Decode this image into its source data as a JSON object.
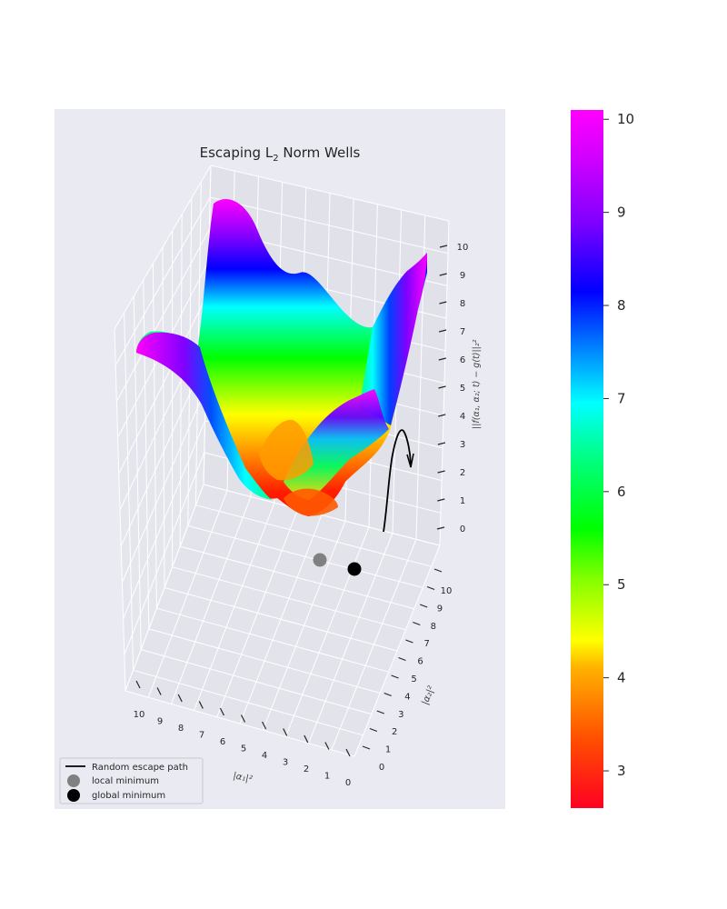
{
  "chart_data": {
    "type": "surface3d",
    "title_main": "Escaping L",
    "title_sub": "2",
    "title_rest": " Norm Wells",
    "xlabel": "|α₁|²",
    "ylabel": "|α₂|²",
    "zlabel": "||f(α₁, α₂; t) − g(t)||₂²",
    "x_ticks": [
      "10",
      "9",
      "8",
      "7",
      "6",
      "5",
      "4",
      "3",
      "2",
      "1",
      "0"
    ],
    "y_ticks": [
      "0",
      "1",
      "2",
      "3",
      "4",
      "5",
      "6",
      "7",
      "8",
      "9",
      "10"
    ],
    "z_ticks": [
      "0",
      "1",
      "2",
      "3",
      "4",
      "5",
      "6",
      "7",
      "8",
      "9",
      "10"
    ],
    "xlim": [
      0,
      10
    ],
    "ylim": [
      0,
      10
    ],
    "zlim": [
      0,
      10
    ],
    "colorbar": {
      "min": 2.6,
      "max": 10.1,
      "ticks": [
        "3",
        "4",
        "5",
        "6",
        "7",
        "8",
        "9",
        "10"
      ],
      "colormap": [
        "#ff0000",
        "#ff8000",
        "#ffff00",
        "#00ff00",
        "#00ffff",
        "#0000ff",
        "#8000ff",
        "#ff00ff"
      ]
    },
    "series": [
      {
        "name": "Random escape path",
        "kind": "line",
        "color": "#000000"
      },
      {
        "name": "local minimum",
        "kind": "point",
        "color": "#808080"
      },
      {
        "name": "global minimum",
        "kind": "point",
        "color": "#000000"
      }
    ],
    "legend_location": "lower-left",
    "grid": true
  },
  "legend": {
    "path_label": "Random escape path",
    "local_label": "local minimum",
    "global_label": "global minimum"
  }
}
